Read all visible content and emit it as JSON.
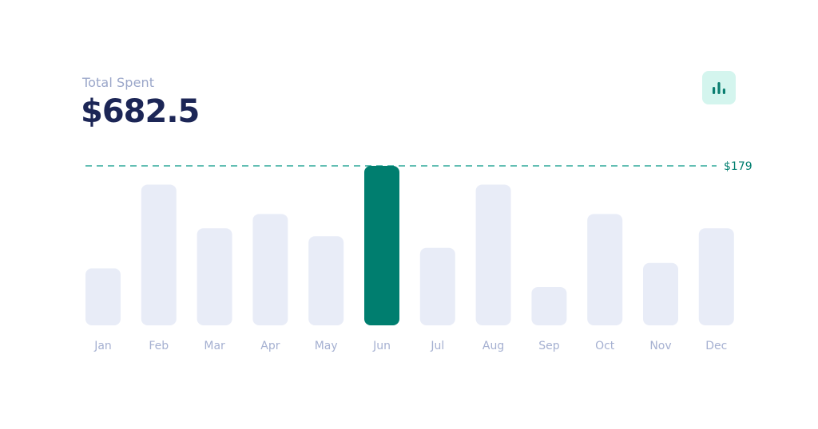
{
  "header": {
    "label": "Total Spent",
    "total": "$682.5"
  },
  "icons": {
    "chart_button": "bar-chart-icon"
  },
  "colors": {
    "bar": "#e8ecf7",
    "highlight": "#007e6f",
    "accent": "#2fa89a",
    "label": "#a5b0d1",
    "title": "#1c2656",
    "button_bg": "#d4f5ee"
  },
  "chart_data": {
    "type": "bar",
    "categories": [
      "Jan",
      "Feb",
      "Mar",
      "Apr",
      "May",
      "Jun",
      "Jul",
      "Aug",
      "Sep",
      "Oct",
      "Nov",
      "Dec"
    ],
    "values": [
      64,
      158,
      109,
      125,
      100,
      179,
      87,
      158,
      43,
      125,
      70,
      109
    ],
    "highlight_index": 5,
    "max_line": {
      "value": 179,
      "label": "$179",
      "style": "dashed"
    },
    "title": "",
    "xlabel": "",
    "ylabel": "",
    "ylim": [
      0,
      179
    ],
    "grid": false,
    "legend": "none"
  }
}
